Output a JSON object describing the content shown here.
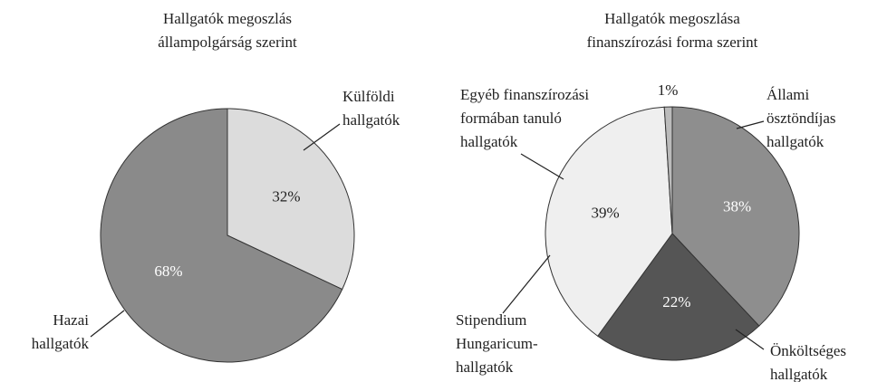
{
  "chart_data": [
    {
      "type": "pie",
      "title_lines": [
        "Hallgatók megoszlás",
        "állampolgárság szerint"
      ],
      "series": [
        {
          "name_lines": [
            "Külföldi",
            "hallgatók"
          ],
          "color": "#dcdcdc",
          "value": 32,
          "value_label": "32%"
        },
        {
          "name_lines": [
            "Hazai",
            "hallgatók"
          ],
          "color": "#8a8a8a",
          "value": 68,
          "value_label": "68%"
        }
      ]
    },
    {
      "type": "pie",
      "title_lines": [
        "Hallgatók megoszlása",
        "finanszírozási forma szerint"
      ],
      "series": [
        {
          "name_lines": [
            "Állami",
            "ösztöndíjas",
            "hallgatók"
          ],
          "color": "#8e8e8e",
          "value": 38,
          "value_label": "38%"
        },
        {
          "name_lines": [
            "Önköltséges",
            "hallgatók"
          ],
          "color": "#555555",
          "value": 22,
          "value_label": "22%"
        },
        {
          "name_lines": [
            "Stipendium",
            "Hungaricum-",
            "hallgatók"
          ],
          "color": "#efefef",
          "value": 39,
          "value_label": "39%"
        },
        {
          "name_lines": [
            "Egyéb finanszírozási",
            "formában tanuló",
            "hallgatók"
          ],
          "color": "#bbbbbb",
          "value": 1,
          "value_label": "1%"
        }
      ]
    }
  ]
}
